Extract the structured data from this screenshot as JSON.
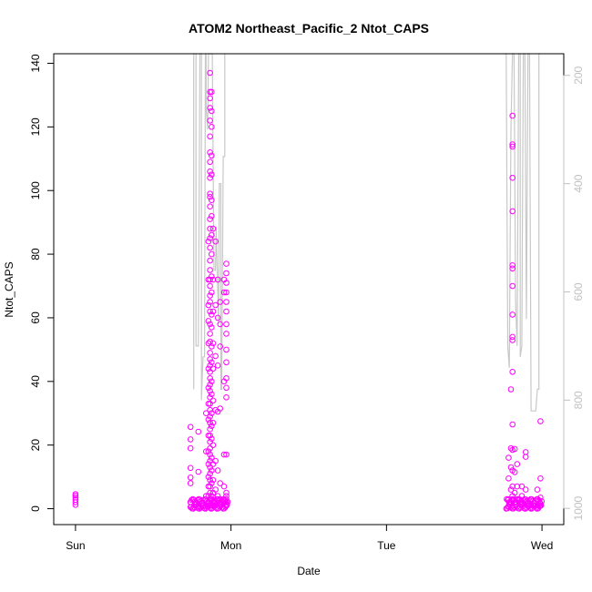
{
  "chart_data": {
    "type": "scatter",
    "title": "ATOM2 Northeast_Pacific_2 Ntot_CAPS",
    "xlabel": "Date",
    "ylabel": "Ntot_CAPS",
    "y2label": "",
    "x_ticks": [
      "Sun",
      "Mon",
      "Tue",
      "Wed"
    ],
    "y_ticks": [
      "0",
      "20",
      "40",
      "60",
      "80",
      "100",
      "120",
      "140"
    ],
    "y2_ticks": [
      "200",
      "400",
      "600",
      "800",
      "1000"
    ],
    "xlim_days": [
      -0.14,
      3.14
    ],
    "ylim": [
      -5,
      143
    ],
    "y2lim": [
      1030,
      160
    ],
    "y2_reversed": true,
    "grid": false,
    "legend": "none",
    "colors": {
      "points": "#ff00ff",
      "secondary_line": "#c8c8c8",
      "secondary_axis": "#c0c0c0",
      "axis": "#000000"
    },
    "series": [
      {
        "name": "",
        "kind": "points",
        "points": [
          [
            0.0,
            1.2
          ],
          [
            0.0,
            2.0
          ],
          [
            0.0,
            2.8
          ],
          [
            0.0,
            3.5
          ],
          [
            0.0,
            4.1
          ],
          [
            0.0,
            4.6
          ],
          [
            0.74,
            25.7
          ],
          [
            0.74,
            21.8
          ],
          [
            0.74,
            19.0
          ],
          [
            0.74,
            12.8
          ],
          [
            0.74,
            9.8
          ],
          [
            0.74,
            8.0
          ],
          [
            0.74,
            2.0
          ],
          [
            0.74,
            0.5
          ],
          [
            0.79,
            24.2
          ],
          [
            0.79,
            11.6
          ],
          [
            0.79,
            0.6
          ],
          [
            0.84,
            30.0
          ],
          [
            0.84,
            18.0
          ],
          [
            0.84,
            4.0
          ],
          [
            0.84,
            0.8
          ],
          [
            0.855,
            84.0
          ],
          [
            0.855,
            72.0
          ],
          [
            0.855,
            64.0
          ],
          [
            0.855,
            59.0
          ],
          [
            0.855,
            52.0
          ],
          [
            0.855,
            44.0
          ],
          [
            0.855,
            38.0
          ],
          [
            0.855,
            33.0
          ],
          [
            0.855,
            28.0
          ],
          [
            0.855,
            23.0
          ],
          [
            0.855,
            18.0
          ],
          [
            0.855,
            14.0
          ],
          [
            0.855,
            10.0
          ],
          [
            0.855,
            7.0
          ],
          [
            0.855,
            4.0
          ],
          [
            0.855,
            2.0
          ],
          [
            0.865,
            137.0
          ],
          [
            0.865,
            131.0
          ],
          [
            0.865,
            129.0
          ],
          [
            0.865,
            126.0
          ],
          [
            0.865,
            122.0
          ],
          [
            0.865,
            117.0
          ],
          [
            0.865,
            112.0
          ],
          [
            0.865,
            109.0
          ],
          [
            0.865,
            106.0
          ],
          [
            0.865,
            104.0
          ],
          [
            0.865,
            99.0
          ],
          [
            0.865,
            98.0
          ],
          [
            0.865,
            95.0
          ],
          [
            0.865,
            91.0
          ],
          [
            0.865,
            88.0
          ],
          [
            0.865,
            85.0
          ],
          [
            0.865,
            82.0
          ],
          [
            0.865,
            78.0
          ],
          [
            0.865,
            75.0
          ],
          [
            0.865,
            72.0
          ],
          [
            0.865,
            70.0
          ],
          [
            0.865,
            67.0
          ],
          [
            0.865,
            65.0
          ],
          [
            0.865,
            62.0
          ],
          [
            0.865,
            58.0
          ],
          [
            0.865,
            55.0
          ],
          [
            0.865,
            52.5
          ],
          [
            0.865,
            49.0
          ],
          [
            0.865,
            47.0
          ],
          [
            0.865,
            45.0
          ],
          [
            0.865,
            43.0
          ],
          [
            0.865,
            41.0
          ],
          [
            0.865,
            39.0
          ],
          [
            0.865,
            37.0
          ],
          [
            0.865,
            35.0
          ],
          [
            0.865,
            33.0
          ],
          [
            0.865,
            31.0
          ],
          [
            0.865,
            29.0
          ],
          [
            0.865,
            27.0
          ],
          [
            0.865,
            25.0
          ],
          [
            0.865,
            23.0
          ],
          [
            0.865,
            21.0
          ],
          [
            0.865,
            19.0
          ],
          [
            0.865,
            17.0
          ],
          [
            0.865,
            15.0
          ],
          [
            0.865,
            13.0
          ],
          [
            0.865,
            11.0
          ],
          [
            0.865,
            9.0
          ],
          [
            0.865,
            7.0
          ],
          [
            0.865,
            5.0
          ],
          [
            0.865,
            3.0
          ],
          [
            0.865,
            1.0
          ],
          [
            0.875,
            131.0
          ],
          [
            0.875,
            125.0
          ],
          [
            0.875,
            120.0
          ],
          [
            0.875,
            111.0
          ],
          [
            0.875,
            105.0
          ],
          [
            0.875,
            97.0
          ],
          [
            0.875,
            92.0
          ],
          [
            0.875,
            86.0
          ],
          [
            0.875,
            80.0
          ],
          [
            0.875,
            73.0
          ],
          [
            0.875,
            68.0
          ],
          [
            0.875,
            61.0
          ],
          [
            0.875,
            57.0
          ],
          [
            0.875,
            51.0
          ],
          [
            0.875,
            46.0
          ],
          [
            0.875,
            40.0
          ],
          [
            0.875,
            36.0
          ],
          [
            0.875,
            30.0
          ],
          [
            0.875,
            26.0
          ],
          [
            0.875,
            22.0
          ],
          [
            0.875,
            16.0
          ],
          [
            0.875,
            12.0
          ],
          [
            0.875,
            8.0
          ],
          [
            0.875,
            4.0
          ],
          [
            0.875,
            1.0
          ],
          [
            0.885,
            88.0
          ],
          [
            0.885,
            72.0
          ],
          [
            0.885,
            62.0
          ],
          [
            0.885,
            52.0
          ],
          [
            0.885,
            44.0
          ],
          [
            0.885,
            34.0
          ],
          [
            0.885,
            27.0
          ],
          [
            0.885,
            20.0
          ],
          [
            0.885,
            14.0
          ],
          [
            0.885,
            9.0
          ],
          [
            0.885,
            5.0
          ],
          [
            0.885,
            2.0
          ],
          [
            0.9,
            84.0
          ],
          [
            0.9,
            64.0
          ],
          [
            0.9,
            48.0
          ],
          [
            0.9,
            31.0
          ],
          [
            0.9,
            15.0
          ],
          [
            0.9,
            6.0
          ],
          [
            0.9,
            2.0
          ],
          [
            0.915,
            72.0
          ],
          [
            0.915,
            60.0
          ],
          [
            0.915,
            45.0
          ],
          [
            0.915,
            30.5
          ],
          [
            0.915,
            12.0
          ],
          [
            0.915,
            4.0
          ],
          [
            0.93,
            65.0
          ],
          [
            0.93,
            58.0
          ],
          [
            0.93,
            51.0
          ],
          [
            0.93,
            31.5
          ],
          [
            0.93,
            8.0
          ],
          [
            0.93,
            3.0
          ],
          [
            0.955,
            72.0
          ],
          [
            0.955,
            68.0
          ],
          [
            0.955,
            40.0
          ],
          [
            0.955,
            17.0
          ],
          [
            0.955,
            7.0
          ],
          [
            0.955,
            2.0
          ],
          [
            0.97,
            77.0
          ],
          [
            0.97,
            74.0
          ],
          [
            0.97,
            71.0
          ],
          [
            0.97,
            68.0
          ],
          [
            0.97,
            65.0
          ],
          [
            0.97,
            62.0
          ],
          [
            0.97,
            58.0
          ],
          [
            0.97,
            55.0
          ],
          [
            0.97,
            50.0
          ],
          [
            0.97,
            46.0
          ],
          [
            0.97,
            41.0
          ],
          [
            0.97,
            38.0
          ],
          [
            0.97,
            35.0
          ],
          [
            0.97,
            17.0
          ],
          [
            0.97,
            5.0
          ],
          [
            0.97,
            4.0
          ],
          [
            0.97,
            3.0
          ],
          [
            0.97,
            2.0
          ],
          [
            0.97,
            1.0
          ],
          [
            2.785,
            16.0
          ],
          [
            2.785,
            9.5
          ],
          [
            2.785,
            3.0
          ],
          [
            2.785,
            0.8
          ],
          [
            2.8,
            37.5
          ],
          [
            2.8,
            19.0
          ],
          [
            2.8,
            13.0
          ],
          [
            2.8,
            6.0
          ],
          [
            2.8,
            2.0
          ],
          [
            2.81,
            123.5
          ],
          [
            2.81,
            114.5
          ],
          [
            2.81,
            113.8
          ],
          [
            2.81,
            104.0
          ],
          [
            2.81,
            93.5
          ],
          [
            2.81,
            76.5
          ],
          [
            2.81,
            75.5
          ],
          [
            2.81,
            70.0
          ],
          [
            2.81,
            61.0
          ],
          [
            2.81,
            54.0
          ],
          [
            2.81,
            53.0
          ],
          [
            2.81,
            43.0
          ],
          [
            2.81,
            26.5
          ],
          [
            2.81,
            18.5
          ],
          [
            2.81,
            12.0
          ],
          [
            2.81,
            7.0
          ],
          [
            2.81,
            4.0
          ],
          [
            2.81,
            1.0
          ],
          [
            2.825,
            18.8
          ],
          [
            2.825,
            11.5
          ],
          [
            2.825,
            5.0
          ],
          [
            2.825,
            2.0
          ],
          [
            2.84,
            14.0
          ],
          [
            2.84,
            7.0
          ],
          [
            2.84,
            3.0
          ],
          [
            2.87,
            7.0
          ],
          [
            2.87,
            4.0
          ],
          [
            2.87,
            1.5
          ],
          [
            2.895,
            17.8
          ],
          [
            2.895,
            16.3
          ],
          [
            2.895,
            6.0
          ],
          [
            2.895,
            2.0
          ],
          [
            2.93,
            3.0
          ],
          [
            2.93,
            1.2
          ],
          [
            2.97,
            6.0
          ],
          [
            2.97,
            3.0
          ],
          [
            2.97,
            1.0
          ],
          [
            2.99,
            27.5
          ],
          [
            2.99,
            9.5
          ],
          [
            2.99,
            3.5
          ],
          [
            2.99,
            1.0
          ]
        ],
        "bottom_cluster_ranges": [
          [
            0.74,
            0.98
          ],
          [
            2.77,
            3.0
          ]
        ]
      },
      {
        "name": "",
        "kind": "line",
        "axis": "right",
        "segments": [
          [
            [
              0.76,
              780
            ],
            [
              0.76,
              160
            ],
            [
              0.775,
              160
            ],
            [
              0.775,
              700
            ],
            [
              0.79,
              700
            ],
            [
              0.8,
              160
            ],
            [
              0.81,
              160
            ],
            [
              0.81,
              800
            ],
            [
              0.82,
              720
            ],
            [
              0.83,
              720
            ],
            [
              0.835,
              160
            ],
            [
              0.84,
              160
            ],
            [
              0.84,
              260
            ],
            [
              0.85,
              300
            ],
            [
              0.855,
              160
            ],
            [
              0.87,
              160
            ],
            [
              0.875,
              160
            ],
            [
              0.88,
              160
            ],
            [
              0.89,
              560
            ],
            [
              0.9,
              560
            ],
            [
              0.905,
              480
            ],
            [
              0.92,
              660
            ],
            [
              0.925,
              400
            ],
            [
              0.935,
              400
            ],
            [
              0.935,
              780
            ],
            [
              0.94,
              780
            ],
            [
              0.95,
              350
            ],
            [
              0.96,
              350
            ],
            [
              0.96,
              160
            ]
          ],
          [
            [
              2.76,
              160
            ],
            [
              2.77,
              160
            ],
            [
              2.78,
              700
            ],
            [
              2.79,
              740
            ],
            [
              2.8,
              300
            ],
            [
              2.81,
              160
            ],
            [
              2.82,
              160
            ],
            [
              2.83,
              620
            ],
            [
              2.84,
              700
            ],
            [
              2.85,
              160
            ],
            [
              2.86,
              160
            ],
            [
              2.86,
              720
            ],
            [
              2.87,
              700
            ],
            [
              2.88,
              160
            ],
            [
              2.89,
              160
            ],
            [
              2.9,
              650
            ],
            [
              2.91,
              160
            ],
            [
              2.92,
              160
            ],
            [
              2.93,
              820
            ],
            [
              2.96,
              820
            ],
            [
              2.97,
              780
            ],
            [
              2.98,
              780
            ],
            [
              2.98,
              160
            ],
            [
              2.99,
              160
            ]
          ]
        ]
      }
    ]
  }
}
